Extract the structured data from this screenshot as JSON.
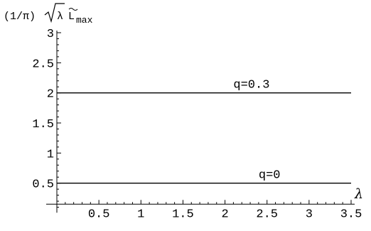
{
  "chart_data": {
    "type": "line",
    "ylabel": "(1/π)√λ L̃max",
    "ylabel_parts": {
      "prefix": "(1/π)",
      "sqrt": "√",
      "lambda": "λ",
      "L": "L",
      "sub": "max"
    },
    "xlabel": "λ",
    "xlim": [
      0,
      3.5
    ],
    "ylim": [
      0,
      3
    ],
    "x_ticks": [
      0.5,
      1,
      1.5,
      2,
      2.5,
      3,
      3.5
    ],
    "x_tick_labels": [
      "0.5",
      "1",
      "1.5",
      "2",
      "2.5",
      "3",
      "3.5"
    ],
    "y_ticks": [
      0.5,
      1,
      1.5,
      2,
      2.5,
      3
    ],
    "y_tick_labels": [
      "0.5",
      "1",
      "1.5",
      "2",
      "2.5",
      "3"
    ],
    "series": [
      {
        "name": "q=0.3",
        "x": [
          0,
          3.5
        ],
        "y": [
          2,
          2
        ]
      },
      {
        "name": "q=0",
        "x": [
          0,
          3.5
        ],
        "y": [
          0.5,
          0.5
        ]
      }
    ],
    "annotations": [
      {
        "text": "q=0.3",
        "x": 2.1,
        "y": 2
      },
      {
        "text": "q=0",
        "x": 2.4,
        "y": 0.5
      }
    ],
    "grid": false
  }
}
